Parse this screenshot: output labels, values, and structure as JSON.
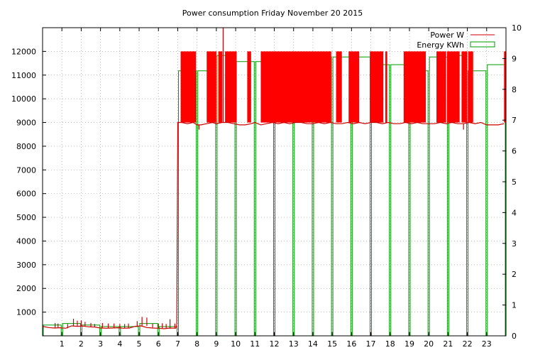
{
  "chart_data": {
    "type": "line",
    "title": "Power consumption Friday November 20 2015",
    "xlabel": "",
    "ylabel": "",
    "y2label": "",
    "grid": true,
    "legend_position": "top-right",
    "xlim": [
      0,
      24
    ],
    "ylim": [
      0,
      13000
    ],
    "y2lim": [
      0,
      10
    ],
    "x_ticks": [
      1,
      2,
      3,
      4,
      5,
      6,
      7,
      8,
      9,
      10,
      11,
      12,
      13,
      14,
      15,
      16,
      17,
      18,
      19,
      20,
      21,
      22,
      23
    ],
    "y_ticks": [
      1000,
      2000,
      3000,
      4000,
      5000,
      6000,
      7000,
      8000,
      9000,
      10000,
      11000,
      12000
    ],
    "y2_ticks": [
      0,
      1,
      2,
      3,
      4,
      5,
      6,
      7,
      8,
      9,
      10
    ],
    "series": [
      {
        "name": "Power W",
        "axis": "left",
        "color": "#cc0000",
        "x": [
          0.0,
          0.3,
          0.6,
          0.9,
          1.2,
          1.5,
          1.8,
          2.1,
          2.4,
          2.7,
          3.0,
          3.3,
          3.6,
          3.9,
          4.2,
          4.5,
          4.8,
          5.1,
          5.4,
          5.7,
          6.0,
          6.3,
          6.6,
          6.9,
          6.95,
          7.0,
          7.2,
          7.5,
          7.8,
          8.0,
          8.2,
          8.5,
          8.8,
          9.0,
          9.3,
          9.6,
          9.9,
          10.2,
          10.5,
          10.8,
          11.0,
          11.3,
          11.6,
          11.9,
          12.2,
          12.5,
          12.8,
          13.1,
          13.4,
          13.7,
          14.0,
          14.3,
          14.6,
          14.9,
          15.2,
          15.5,
          15.8,
          16.1,
          16.4,
          16.7,
          17.0,
          17.3,
          17.6,
          17.9,
          18.2,
          18.5,
          18.8,
          19.1,
          19.4,
          19.7,
          20.0,
          20.3,
          20.6,
          20.9,
          21.2,
          21.5,
          21.8,
          22.1,
          22.4,
          22.7,
          23.0,
          23.3,
          23.6,
          23.9
        ],
        "values": [
          400,
          350,
          330,
          340,
          320,
          420,
          400,
          410,
          380,
          370,
          330,
          320,
          330,
          340,
          320,
          330,
          400,
          420,
          350,
          330,
          320,
          300,
          330,
          320,
          450,
          9000,
          9000,
          8950,
          9000,
          8900,
          8900,
          8950,
          9000,
          8950,
          9000,
          9000,
          8950,
          8900,
          8900,
          8950,
          9000,
          8900,
          8950,
          9000,
          8950,
          9000,
          8950,
          9000,
          9000,
          8950,
          8950,
          9000,
          8950,
          9000,
          8950,
          8950,
          9000,
          8950,
          9000,
          8950,
          9000,
          9000,
          8950,
          9000,
          8950,
          8950,
          9000,
          8950,
          9000,
          8950,
          8950,
          8950,
          9000,
          8950,
          9000,
          8950,
          8950,
          9000,
          8950,
          9000,
          8900,
          8900,
          8900,
          8950
        ],
        "high_bands": [
          [
            7.15,
            7.95
          ],
          [
            8.5,
            9.0
          ],
          [
            9.1,
            9.3
          ],
          [
            9.45,
            10.05
          ],
          [
            10.6,
            10.8
          ],
          [
            11.3,
            14.95
          ],
          [
            15.2,
            15.5
          ],
          [
            15.85,
            16.4
          ],
          [
            16.95,
            17.65
          ],
          [
            17.75,
            17.85
          ],
          [
            18.7,
            19.85
          ],
          [
            20.4,
            20.9
          ],
          [
            20.95,
            21.6
          ],
          [
            21.7,
            22.0
          ],
          [
            22.05,
            22.3
          ],
          [
            23.9,
            24.0
          ]
        ],
        "band_high_value": 12000,
        "band_low_value": 9000,
        "spikes": [
          {
            "x": 0.65,
            "value": 540
          },
          {
            "x": 0.8,
            "value": 520
          },
          {
            "x": 1.3,
            "value": 500
          },
          {
            "x": 1.6,
            "value": 720
          },
          {
            "x": 1.8,
            "value": 640
          },
          {
            "x": 2.0,
            "value": 650
          },
          {
            "x": 2.2,
            "value": 590
          },
          {
            "x": 2.5,
            "value": 540
          },
          {
            "x": 2.7,
            "value": 500
          },
          {
            "x": 3.1,
            "value": 540
          },
          {
            "x": 3.4,
            "value": 520
          },
          {
            "x": 3.7,
            "value": 520
          },
          {
            "x": 4.0,
            "value": 500
          },
          {
            "x": 4.25,
            "value": 500
          },
          {
            "x": 4.45,
            "value": 520
          },
          {
            "x": 4.9,
            "value": 620
          },
          {
            "x": 5.15,
            "value": 800
          },
          {
            "x": 5.4,
            "value": 770
          },
          {
            "x": 5.7,
            "value": 510
          },
          {
            "x": 6.0,
            "value": 510
          },
          {
            "x": 6.2,
            "value": 530
          },
          {
            "x": 6.4,
            "value": 500
          },
          {
            "x": 6.6,
            "value": 700
          },
          {
            "x": 6.85,
            "value": 520
          },
          {
            "x": 8.1,
            "value": 8700
          },
          {
            "x": 9.35,
            "value": 13000
          },
          {
            "x": 21.8,
            "value": 8700
          }
        ]
      },
      {
        "name": "Energy KWh",
        "axis": "right",
        "color": "#009900",
        "type": "bar",
        "x": [
          0.5,
          1.5,
          2.5,
          3.5,
          4.5,
          5.5,
          6.5,
          7.5,
          8.5,
          9.5,
          10.5,
          11.5,
          12.5,
          13.5,
          14.5,
          15.5,
          16.5,
          17.5,
          18.5,
          19.5,
          20.5,
          21.5,
          22.5,
          23.5
        ],
        "values": [
          0.35,
          0.4,
          0.35,
          0.3,
          0.3,
          0.4,
          0.3,
          8.6,
          8.6,
          9.1,
          8.9,
          8.9,
          9.2,
          9.1,
          9.05,
          9.05,
          9.05,
          8.8,
          8.8,
          8.6,
          9.05,
          9.1,
          8.6,
          8.8
        ]
      }
    ]
  }
}
